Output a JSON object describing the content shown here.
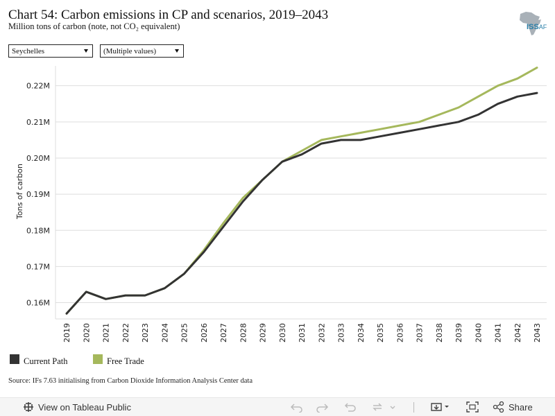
{
  "header": {
    "title": "Chart 54: Carbon emissions in CP and scenarios, 2019–2043",
    "subtitle": "Million tons of carbon (note, not CO₂ equivalent)",
    "logo_text": "ISS",
    "logo_suffix": "AF"
  },
  "filters": {
    "country": "Seychelles",
    "scenario": "(Multiple values)"
  },
  "legend": {
    "current_path": "Current Path",
    "free_trade": "Free Trade"
  },
  "source": "Source: IFs 7.63 initialising from Carbon Dioxide Information Analysis Center data",
  "toolbar": {
    "view_label": "View on Tableau Public",
    "share_label": "Share"
  },
  "colors": {
    "current_path": "#333333",
    "free_trade": "#a5b85c",
    "grid": "#dddddd",
    "logo": "#2a7fa8"
  },
  "chart_data": {
    "type": "line",
    "title": "",
    "ylabel": "Tons of carbon",
    "xlabel": "",
    "ylim": [
      0.1555,
      0.2255
    ],
    "y_ticks": [
      0.16,
      0.17,
      0.18,
      0.19,
      0.2,
      0.21,
      0.22
    ],
    "y_tick_labels": [
      "0.16M",
      "0.17M",
      "0.18M",
      "0.19M",
      "0.20M",
      "0.21M",
      "0.22M"
    ],
    "grid": true,
    "legend_position": "bottom-left",
    "x": [
      "2019",
      "2020",
      "2021",
      "2022",
      "2023",
      "2024",
      "2025",
      "2026",
      "2027",
      "2028",
      "2029",
      "2030",
      "2031",
      "2032",
      "2033",
      "2034",
      "2035",
      "2036",
      "2037",
      "2038",
      "2039",
      "2040",
      "2041",
      "2042",
      "2043"
    ],
    "series": [
      {
        "name": "Current Path",
        "color": "#333333",
        "values": [
          0.157,
          0.163,
          0.161,
          0.162,
          0.162,
          0.164,
          0.168,
          0.174,
          0.181,
          0.188,
          0.194,
          0.199,
          0.201,
          0.204,
          0.205,
          0.205,
          0.206,
          0.207,
          0.208,
          0.209,
          0.21,
          0.212,
          0.215,
          0.217,
          0.218
        ]
      },
      {
        "name": "Free Trade",
        "color": "#a5b85c",
        "values": [
          0.157,
          0.163,
          0.161,
          0.162,
          0.162,
          0.164,
          0.168,
          0.1745,
          0.182,
          0.189,
          0.194,
          0.199,
          0.202,
          0.205,
          0.206,
          0.207,
          0.208,
          0.209,
          0.21,
          0.212,
          0.214,
          0.217,
          0.22,
          0.222,
          0.225
        ]
      }
    ]
  }
}
